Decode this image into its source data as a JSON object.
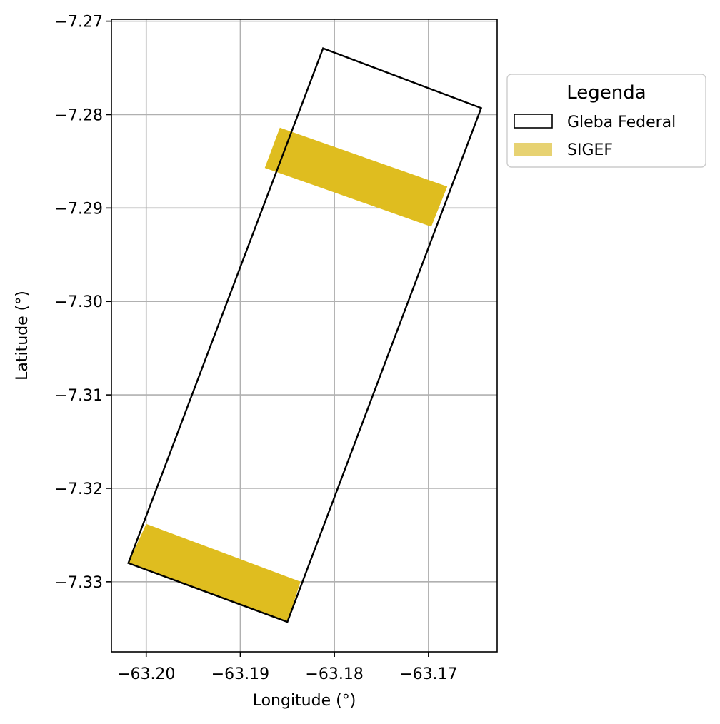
{
  "chart_data": {
    "type": "map",
    "xlabel": "Longitude (°)",
    "ylabel": "Latitude (°)",
    "xlim": [
      -63.2037,
      -63.1627
    ],
    "ylim": [
      -7.3375,
      -7.2698
    ],
    "x_ticks": [
      {
        "value": -63.2,
        "label": "−63.20"
      },
      {
        "value": -63.19,
        "label": "−63.19"
      },
      {
        "value": -63.18,
        "label": "−63.18"
      },
      {
        "value": -63.17,
        "label": "−63.17"
      }
    ],
    "y_ticks": [
      {
        "value": -7.27,
        "label": "−7.27"
      },
      {
        "value": -7.28,
        "label": "−7.28"
      },
      {
        "value": -7.29,
        "label": "−7.29"
      },
      {
        "value": -7.3,
        "label": "−7.30"
      },
      {
        "value": -7.31,
        "label": "−7.31"
      },
      {
        "value": -7.32,
        "label": "−7.32"
      },
      {
        "value": -7.33,
        "label": "−7.33"
      }
    ],
    "grid": true,
    "legend": {
      "title": "Legenda",
      "placement": "outside-right-top",
      "entries": [
        {
          "label": "Gleba Federal",
          "style": "outline",
          "edge": "#000000",
          "fill": "none"
        },
        {
          "label": "SIGEF",
          "style": "fill",
          "fill": "#e7d272"
        }
      ]
    },
    "layers": [
      {
        "name": "Gleba Federal",
        "edge": "#000000",
        "fill": "none",
        "polygons": [
          [
            [
              -63.1812,
              -7.2729
            ],
            [
              -63.1644,
              -7.2793
            ],
            [
              -63.185,
              -7.3343
            ],
            [
              -63.2019,
              -7.328
            ]
          ]
        ]
      },
      {
        "name": "SIGEF",
        "fill": "#dfbd1f",
        "polygons": [
          [
            [
              -63.1858,
              -7.2814
            ],
            [
              -63.168,
              -7.2877
            ],
            [
              -63.1697,
              -7.292
            ],
            [
              -63.1874,
              -7.2857
            ]
          ],
          [
            [
              -63.2,
              -7.3238
            ],
            [
              -63.1836,
              -7.33
            ],
            [
              -63.185,
              -7.3343
            ],
            [
              -63.2019,
              -7.328
            ]
          ]
        ]
      }
    ]
  }
}
